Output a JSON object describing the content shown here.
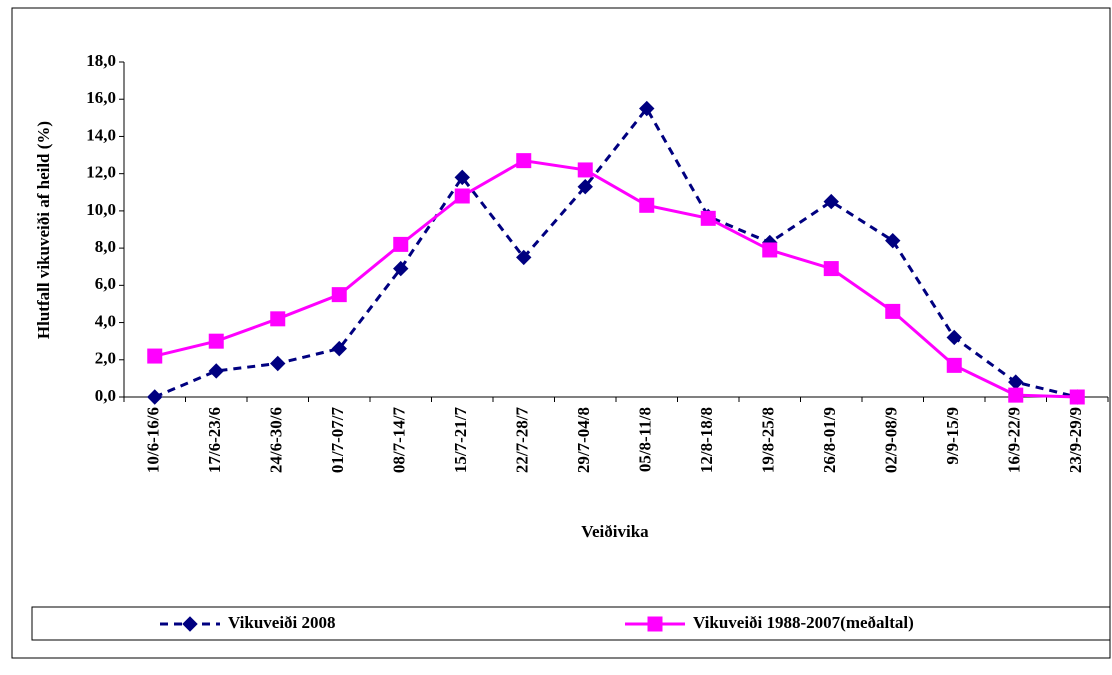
{
  "chart_data": {
    "type": "line",
    "y_label": "Hlutfall vikuveiði af heild (%)",
    "x_label": "Veiðivika",
    "categories": [
      "10/6-16/6",
      "17/6-23/6",
      "24/6-30/6",
      "01/7-07/7",
      "08/7-14/7",
      "15/7-21/7",
      "22/7-28/7",
      "29/7-04/8",
      "05/8-11/8",
      "12/8-18/8",
      "19/8-25/8",
      "26/8-01/9",
      "02/9-08/9",
      "9/9-15/9",
      "16/9-22/9",
      "23/9-29/9"
    ],
    "series": [
      {
        "name": "Vikuveiði 2008",
        "color": "#000080",
        "dashed": true,
        "marker": "diamond",
        "values": [
          0.0,
          1.4,
          1.8,
          2.6,
          6.9,
          11.8,
          7.5,
          11.3,
          15.5,
          9.7,
          8.3,
          10.5,
          8.4,
          3.2,
          0.8,
          0.0
        ]
      },
      {
        "name": "Vikuveiði 1988-2007(meðaltal)",
        "color": "#ff00ff",
        "dashed": false,
        "marker": "square",
        "values": [
          2.2,
          3.0,
          4.2,
          5.5,
          8.2,
          10.8,
          12.7,
          12.2,
          10.3,
          9.6,
          7.9,
          6.9,
          4.6,
          1.7,
          0.1,
          0.0
        ]
      }
    ],
    "ylim": [
      0,
      18
    ],
    "yticks": [
      {
        "value": 0,
        "label": "0,0"
      },
      {
        "value": 2,
        "label": "2,0"
      },
      {
        "value": 4,
        "label": "4,0"
      },
      {
        "value": 6,
        "label": "6,0"
      },
      {
        "value": 8,
        "label": "8,0"
      },
      {
        "value": 10,
        "label": "10,0"
      },
      {
        "value": 12,
        "label": "12,0"
      },
      {
        "value": 14,
        "label": "14,0"
      },
      {
        "value": 16,
        "label": "16,0"
      },
      {
        "value": 18,
        "label": "18,0"
      }
    ],
    "legend": "bottom"
  }
}
